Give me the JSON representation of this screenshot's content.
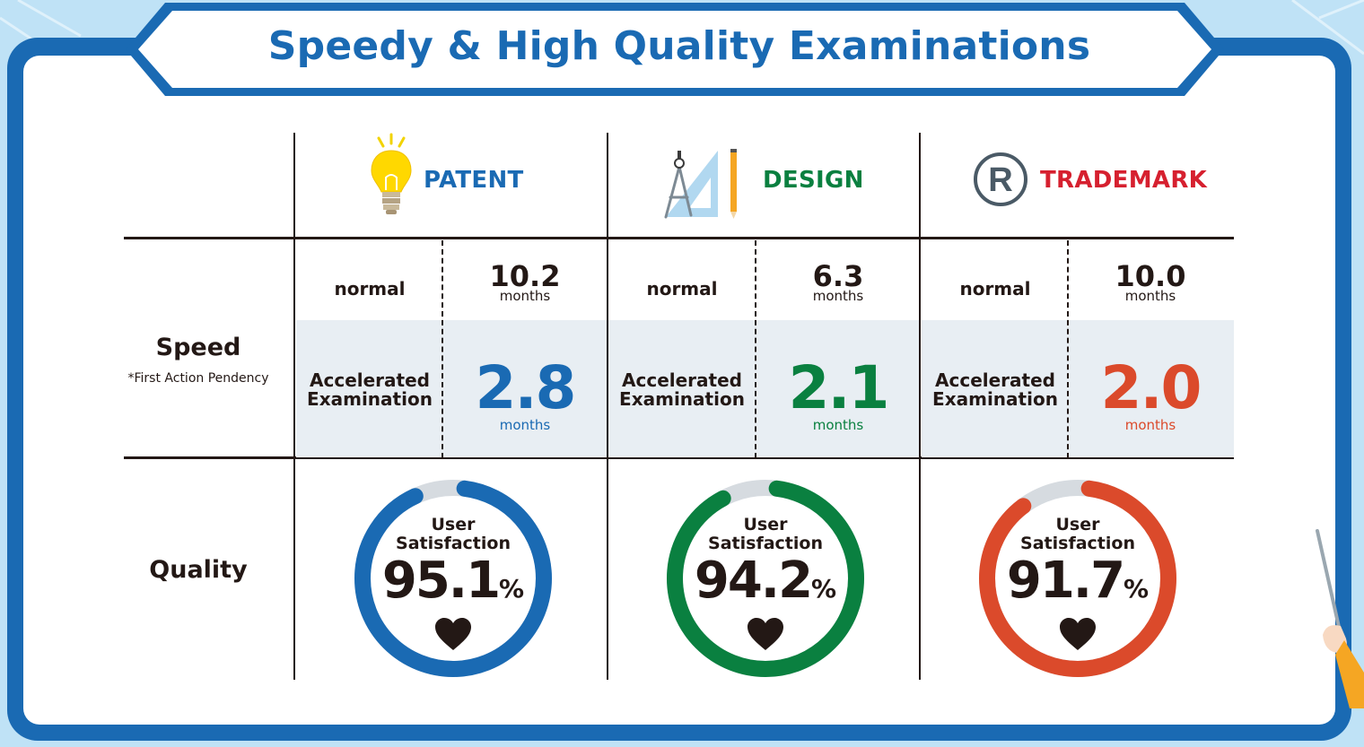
{
  "title": "Speedy & High Quality Examinations",
  "row_labels": {
    "speed": "Speed",
    "speed_note": "*First Action Pendency",
    "quality": "Quality"
  },
  "categories": [
    {
      "name": "PATENT",
      "icon": "lightbulb-icon",
      "color": "#1a6ab3",
      "normal_label": "normal",
      "normal_value": "10.2",
      "normal_unit": "months",
      "accel_label_1": "Accelerated",
      "accel_label_2": "Examination",
      "accel_value": "2.8",
      "accel_unit": "months",
      "satisfaction_label_1": "User",
      "satisfaction_label_2": "Satisfaction",
      "satisfaction_value": "95.1",
      "satisfaction_pct": 95.1,
      "satisfaction_unit": "%"
    },
    {
      "name": "DESIGN",
      "icon": "drafting-compass-icon",
      "color": "#0a8040",
      "normal_label": "normal",
      "normal_value": "6.3",
      "normal_unit": "months",
      "accel_label_1": "Accelerated",
      "accel_label_2": "Examination",
      "accel_value": "2.1",
      "accel_unit": "months",
      "satisfaction_label_1": "User",
      "satisfaction_label_2": "Satisfaction",
      "satisfaction_value": "94.2",
      "satisfaction_pct": 94.2,
      "satisfaction_unit": "%"
    },
    {
      "name": "TRADEMARK",
      "icon": "registered-mark-icon",
      "color": "#d6202f",
      "accent_color": "#db4a2b",
      "normal_label": "normal",
      "normal_value": "10.0",
      "normal_unit": "months",
      "accel_label_1": "Accelerated",
      "accel_label_2": "Examination",
      "accel_value": "2.0",
      "accel_unit": "months",
      "satisfaction_label_1": "User",
      "satisfaction_label_2": "Satisfaction",
      "satisfaction_value": "91.7",
      "satisfaction_pct": 91.7,
      "satisfaction_unit": "%"
    }
  ]
}
